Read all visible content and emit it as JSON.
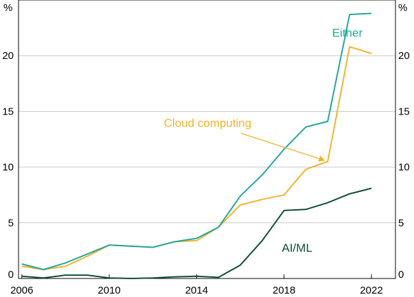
{
  "chart_data": {
    "type": "line",
    "title": "",
    "xlabel": "",
    "ylabel": "%",
    "ylabel_right": "%",
    "xlim": [
      2005.85,
      2023.1
    ],
    "ylim": [
      0,
      25
    ],
    "x_ticks": [
      2006,
      2010,
      2014,
      2018,
      2022
    ],
    "y_ticks": [
      0,
      5,
      10,
      15,
      20
    ],
    "x_tick_labels": [
      "2006",
      "2010",
      "2014",
      "2018",
      "2022"
    ],
    "y_tick_labels": [
      "0",
      "5",
      "10",
      "15",
      "20"
    ],
    "grid": true,
    "colors": {
      "either": "#1fa89c",
      "cloud": "#f5b227",
      "aiml": "#0e4d35",
      "grid": "#c8c8c8",
      "axis": "#000000"
    },
    "series": [
      {
        "key": "either",
        "name": "Either",
        "x": [
          2006,
          2007,
          2008,
          2009,
          2010,
          2011,
          2012,
          2013,
          2014,
          2015,
          2016,
          2017,
          2018,
          2019,
          2020,
          2021,
          2022
        ],
        "values": [
          1.3,
          0.8,
          1.4,
          2.2,
          3.0,
          2.9,
          2.8,
          3.3,
          3.6,
          4.6,
          7.4,
          9.3,
          11.6,
          13.6,
          14.1,
          23.7,
          23.8
        ]
      },
      {
        "key": "cloud",
        "name": "Cloud computing",
        "x": [
          2006,
          2007,
          2008,
          2009,
          2010,
          2011,
          2012,
          2013,
          2014,
          2015,
          2016,
          2017,
          2018,
          2019,
          2020,
          2021,
          2022
        ],
        "values": [
          1.1,
          0.8,
          1.1,
          2.0,
          3.0,
          2.9,
          2.8,
          3.3,
          3.4,
          4.6,
          6.6,
          7.1,
          7.5,
          9.8,
          10.5,
          20.8,
          20.2
        ]
      },
      {
        "key": "aiml",
        "name": "AI/ML",
        "x": [
          2006,
          2007,
          2008,
          2009,
          2010,
          2011,
          2012,
          2013,
          2014,
          2015,
          2016,
          2017,
          2018,
          2019,
          2020,
          2021,
          2022
        ],
        "values": [
          0.2,
          0.05,
          0.3,
          0.3,
          0.05,
          0.0,
          0.05,
          0.15,
          0.2,
          0.1,
          1.2,
          3.4,
          6.1,
          6.2,
          6.8,
          7.6,
          8.1
        ]
      }
    ],
    "annotations": [
      {
        "key": "either",
        "text": "Either",
        "x": 2020.2,
        "y": 21.7
      },
      {
        "key": "cloud",
        "text": "Cloud computing",
        "x": 2012.5,
        "y": 13.6,
        "arrow_to_x": 2019.85,
        "arrow_to_y": 10.6
      },
      {
        "key": "aiml",
        "text": "AI/ML",
        "x": 2017.9,
        "y": 2.4
      }
    ]
  }
}
